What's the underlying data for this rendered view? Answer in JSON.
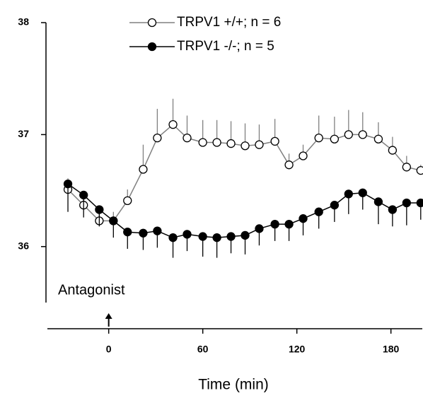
{
  "chart_data": {
    "type": "line",
    "x_label": "Time (min)",
    "annotation": "Antagonist",
    "annotation_x": 0,
    "x": [
      -26,
      -16,
      -6,
      3,
      12,
      22,
      31,
      41,
      50,
      60,
      69,
      78,
      87,
      96,
      106,
      115,
      124,
      134,
      144,
      153,
      162,
      172,
      181,
      190,
      199
    ],
    "series": [
      {
        "name": "TRPV1 +/+; n = 6",
        "color": "#808080",
        "marker_fill": "#ffffff",
        "values": [
          36.51,
          36.37,
          36.23,
          36.23,
          36.41,
          36.69,
          36.97,
          37.09,
          36.97,
          36.93,
          36.93,
          36.92,
          36.9,
          36.91,
          36.94,
          36.73,
          36.81,
          36.97,
          36.96,
          37.0,
          37.0,
          36.96,
          36.86,
          36.71,
          36.68
        ],
        "errors": [
          0.1,
          0.1,
          0.1,
          0.08,
          0.1,
          0.22,
          0.26,
          0.23,
          0.2,
          0.2,
          0.2,
          0.2,
          0.2,
          0.18,
          0.2,
          0.1,
          0.1,
          0.2,
          0.2,
          0.22,
          0.2,
          0.15,
          0.12,
          0.1,
          0.05
        ],
        "error_direction": "up"
      },
      {
        "name": "TRPV1 -/-; n = 5",
        "color": "#000000",
        "marker_fill": "#000000",
        "values": [
          36.56,
          36.46,
          36.33,
          36.23,
          36.13,
          36.12,
          36.14,
          36.08,
          36.11,
          36.09,
          36.08,
          36.09,
          36.1,
          36.16,
          36.2,
          36.2,
          36.25,
          36.31,
          36.37,
          36.47,
          36.48,
          36.4,
          36.33,
          36.39,
          36.39
        ],
        "errors": [
          0.25,
          0.2,
          0.15,
          0.15,
          0.15,
          0.15,
          0.15,
          0.18,
          0.15,
          0.18,
          0.18,
          0.15,
          0.17,
          0.15,
          0.15,
          0.15,
          0.15,
          0.15,
          0.15,
          0.18,
          0.15,
          0.2,
          0.15,
          0.2,
          0.15
        ],
        "error_direction": "down"
      }
    ],
    "xlim": [
      -40,
      200
    ],
    "xticks": [
      0,
      60,
      120,
      180
    ],
    "ylim": [
      35.5,
      38
    ],
    "yticks": [
      36,
      37,
      38
    ],
    "grid": false
  }
}
